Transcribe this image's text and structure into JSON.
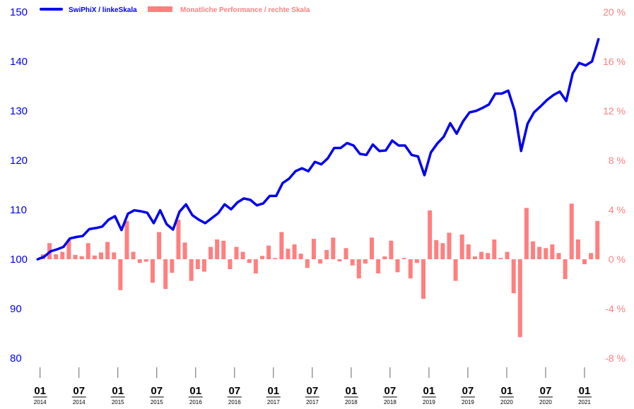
{
  "chart_data": {
    "type": "bar+line",
    "title": "",
    "legend": [
      {
        "label": "SwiPhiX / linkeSkala",
        "color": "#0000ee",
        "kind": "line"
      },
      {
        "label": "Monatliche Performance / rechte Skala",
        "color": "#ff7f7f",
        "kind": "bar"
      }
    ],
    "legend_position": "top-left",
    "left_axis": {
      "ticks": [
        80,
        90,
        100,
        110,
        120,
        130,
        140,
        150
      ],
      "labels": [
        "80",
        "90",
        "100",
        "110",
        "120",
        "130",
        "140",
        "150"
      ],
      "range": [
        80,
        150
      ]
    },
    "right_axis": {
      "ticks": [
        -8,
        -4,
        0,
        4,
        8,
        12,
        16,
        20
      ],
      "labels": [
        "-8 %",
        "-4 %",
        "0 %",
        "4 %",
        "8 %",
        "12 %",
        "16 %",
        "20 %"
      ],
      "range": [
        -8,
        20
      ]
    },
    "x_ticks": [
      {
        "month": "01",
        "year": "2014",
        "index": 1
      },
      {
        "month": "07",
        "year": "2014",
        "index": 7
      },
      {
        "month": "01",
        "year": "2015",
        "index": 13
      },
      {
        "month": "07",
        "year": "2015",
        "index": 19
      },
      {
        "month": "01",
        "year": "2016",
        "index": 25
      },
      {
        "month": "07",
        "year": "2016",
        "index": 31
      },
      {
        "month": "01",
        "year": "2017",
        "index": 37
      },
      {
        "month": "07",
        "year": "2017",
        "index": 43
      },
      {
        "month": "01",
        "year": "2018",
        "index": 49
      },
      {
        "month": "07",
        "year": "2018",
        "index": 55
      },
      {
        "month": "01",
        "year": "2019",
        "index": 61
      },
      {
        "month": "07",
        "year": "2019",
        "index": 67
      },
      {
        "month": "01",
        "year": "2020",
        "index": 73
      },
      {
        "month": "07",
        "year": "2020",
        "index": 79
      },
      {
        "month": "01",
        "year": "2021",
        "index": 85
      }
    ],
    "index_series": [
      100.0,
      100.5,
      101.6,
      102.0,
      102.5,
      104.2,
      104.5,
      104.7,
      106.1,
      106.3,
      106.6,
      108.0,
      108.7,
      105.9,
      109.2,
      109.9,
      109.7,
      109.4,
      107.3,
      109.9,
      107.1,
      106.0,
      109.6,
      111.1,
      108.9,
      108.0,
      107.3,
      108.3,
      109.3,
      111.1,
      110.1,
      111.5,
      112.3,
      112.0,
      110.9,
      111.3,
      112.8,
      112.8,
      115.4,
      116.3,
      117.8,
      118.4,
      117.8,
      119.7,
      119.2,
      120.4,
      122.5,
      122.5,
      123.5,
      123.0,
      121.3,
      121.1,
      123.2,
      121.9,
      122.0,
      124.0,
      123.0,
      123.0,
      121.1,
      120.8,
      117.0,
      121.6,
      123.4,
      124.8,
      127.5,
      125.4,
      127.9,
      129.7,
      130.0,
      130.6,
      131.3,
      133.5,
      133.5,
      134.1,
      130.0,
      121.9,
      127.4,
      129.7,
      130.9,
      132.2,
      133.2,
      133.9,
      132.0,
      137.6,
      139.7,
      139.2,
      140.0,
      144.5
    ],
    "monthly_performance": [
      0.4,
      1.3,
      0.4,
      0.6,
      1.6,
      0.35,
      0.25,
      1.3,
      0.3,
      0.55,
      1.4,
      0.55,
      -2.5,
      3.1,
      0.6,
      -0.3,
      -0.2,
      -1.9,
      2.2,
      -2.4,
      -1.1,
      3.2,
      1.35,
      -1.75,
      -0.8,
      -1.0,
      1.0,
      1.6,
      1.5,
      -0.8,
      1.0,
      0.6,
      -0.3,
      -1.15,
      0.27,
      1.1,
      0.1,
      2.2,
      0.85,
      1.2,
      0.45,
      -0.7,
      1.65,
      -0.35,
      0.75,
      1.75,
      -0.17,
      0.9,
      -0.5,
      -1.55,
      -0.35,
      1.75,
      -1.15,
      0.23,
      1.5,
      -1.05,
      0.1,
      -1.55,
      -0.3,
      -3.2,
      3.95,
      1.55,
      1.3,
      2.15,
      -1.75,
      2.0,
      1.2,
      0.23,
      0.6,
      0.5,
      1.6,
      0.1,
      0.6,
      -2.75,
      -6.3,
      4.15,
      1.45,
      1.0,
      0.9,
      1.2,
      0.5,
      -1.6,
      4.5,
      1.6,
      -0.4,
      0.5,
      3.1
    ],
    "colors": {
      "line": "#0000ee",
      "bar": "#ff7f7f",
      "tick": "#666666"
    }
  }
}
